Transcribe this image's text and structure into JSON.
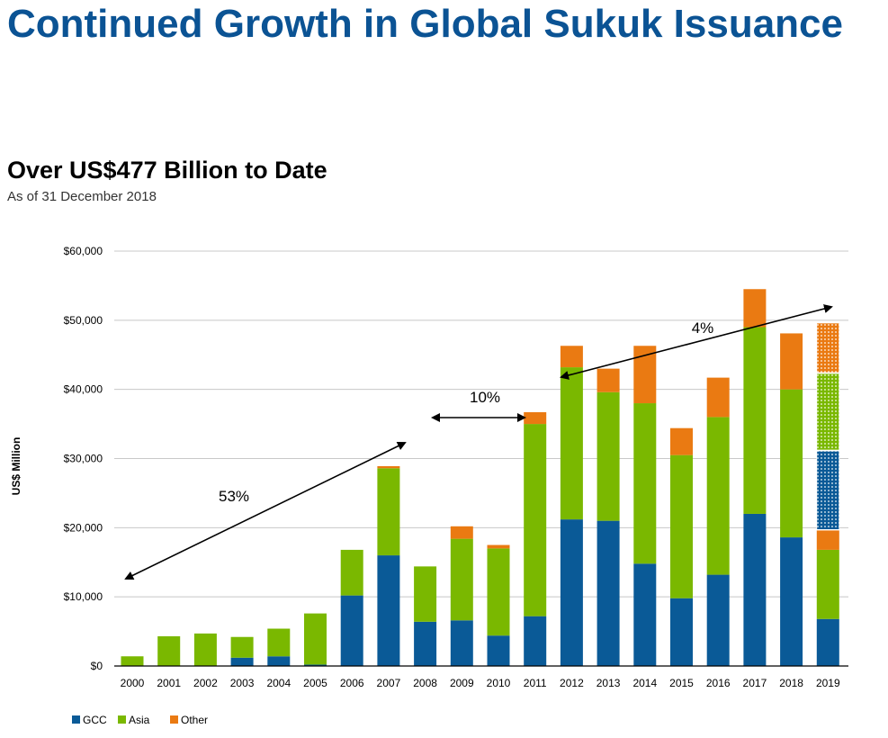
{
  "title": "Continued Growth in Global Sukuk Issuance",
  "subtitle": "Over US$477 Billion to Date",
  "as_of": "As of 31 December 2018",
  "colors": {
    "title": "#0b5394",
    "GCC": "#0a5a97",
    "Asia": "#7ab800",
    "Other": "#ea7a12",
    "grid": "#c8c8c8"
  },
  "chart_data": {
    "type": "bar",
    "stacked": true,
    "ylabel": "US$ Million",
    "xlabel": "",
    "ylim": [
      0,
      60000
    ],
    "yticks": [
      0,
      10000,
      20000,
      30000,
      40000,
      50000,
      60000
    ],
    "ytick_labels": [
      "$0",
      "$10,000",
      "$20,000",
      "$30,000",
      "$40,000",
      "$50,000",
      "$60,000"
    ],
    "categories": [
      "2000",
      "2001",
      "2002",
      "2003",
      "2004",
      "2005",
      "2006",
      "2007",
      "2008",
      "2009",
      "2010",
      "2011",
      "2012",
      "2013",
      "2014",
      "2015",
      "2016",
      "2017",
      "2018",
      "2019"
    ],
    "series": [
      {
        "name": "GCC",
        "values": [
          0,
          0,
          0,
          1200,
          1400,
          200,
          10200,
          16000,
          6400,
          6600,
          4400,
          7200,
          21200,
          21000,
          14800,
          9800,
          13200,
          22000,
          18600,
          6800
        ]
      },
      {
        "name": "Asia",
        "values": [
          1400,
          4300,
          4700,
          3000,
          4000,
          7400,
          6600,
          12600,
          8000,
          11800,
          12600,
          27800,
          22000,
          18600,
          23200,
          20700,
          22800,
          27000,
          21400,
          10000
        ]
      },
      {
        "name": "Other",
        "values": [
          0,
          0,
          0,
          0,
          0,
          0,
          0,
          300,
          0,
          1800,
          500,
          1700,
          3100,
          3400,
          8300,
          3900,
          5700,
          5500,
          8100,
          2800
        ]
      }
    ],
    "projection_2019": {
      "GCC": 11500,
      "Asia": 11200,
      "Other": 7300
    },
    "annotations": [
      {
        "label": "53%"
      },
      {
        "label": "10%"
      },
      {
        "label": "4%"
      }
    ],
    "legend_position": "bottom-left",
    "grid": true
  }
}
